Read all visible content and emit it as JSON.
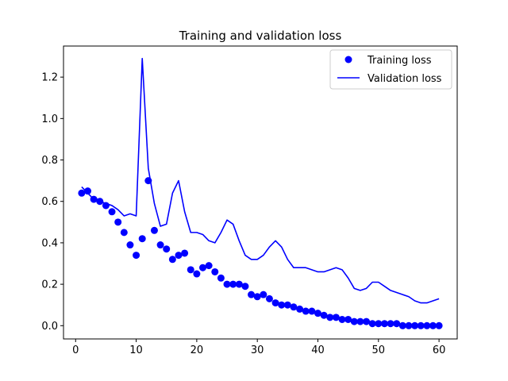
{
  "chart_data": {
    "type": "line",
    "title": "Training and validation loss",
    "xlabel": "",
    "ylabel": "",
    "xlim": [
      -2,
      63
    ],
    "ylim": [
      -0.064,
      1.35
    ],
    "xticks": [
      0,
      10,
      20,
      30,
      40,
      50,
      60
    ],
    "yticks": [
      0.0,
      0.2,
      0.4,
      0.6,
      0.8,
      1.0,
      1.2
    ],
    "xtick_labels": [
      "0",
      "10",
      "20",
      "30",
      "40",
      "50",
      "60"
    ],
    "ytick_labels": [
      "0.0",
      "0.2",
      "0.4",
      "0.6",
      "0.8",
      "1.0",
      "1.2"
    ],
    "grid": false,
    "legend_position": "top-right",
    "x": [
      1,
      2,
      3,
      4,
      5,
      6,
      7,
      8,
      9,
      10,
      11,
      12,
      13,
      14,
      15,
      16,
      17,
      18,
      19,
      20,
      21,
      22,
      23,
      24,
      25,
      26,
      27,
      28,
      29,
      30,
      31,
      32,
      33,
      34,
      35,
      36,
      37,
      38,
      39,
      40,
      41,
      42,
      43,
      44,
      45,
      46,
      47,
      48,
      49,
      50,
      51,
      52,
      53,
      54,
      55,
      56,
      57,
      58,
      59,
      60
    ],
    "series": [
      {
        "name": "Training loss",
        "style": "points",
        "color": "#0000ff",
        "values": [
          0.64,
          0.65,
          0.61,
          0.6,
          0.58,
          0.55,
          0.5,
          0.45,
          0.39,
          0.34,
          0.42,
          0.7,
          0.46,
          0.39,
          0.37,
          0.32,
          0.34,
          0.35,
          0.27,
          0.25,
          0.28,
          0.29,
          0.26,
          0.23,
          0.2,
          0.2,
          0.2,
          0.19,
          0.15,
          0.14,
          0.15,
          0.13,
          0.11,
          0.1,
          0.1,
          0.09,
          0.08,
          0.07,
          0.07,
          0.06,
          0.05,
          0.04,
          0.04,
          0.03,
          0.03,
          0.02,
          0.02,
          0.02,
          0.01,
          0.01,
          0.01,
          0.01,
          0.01,
          0.0,
          0.0,
          0.0,
          0.0,
          0.0,
          0.0,
          0.0
        ]
      },
      {
        "name": "Validation loss",
        "style": "line",
        "color": "#0000ff",
        "values": [
          0.67,
          0.64,
          0.61,
          0.6,
          0.59,
          0.58,
          0.56,
          0.53,
          0.54,
          0.53,
          1.29,
          0.76,
          0.59,
          0.48,
          0.49,
          0.64,
          0.7,
          0.55,
          0.45,
          0.45,
          0.44,
          0.41,
          0.4,
          0.45,
          0.51,
          0.49,
          0.41,
          0.34,
          0.32,
          0.32,
          0.34,
          0.38,
          0.41,
          0.38,
          0.32,
          0.28,
          0.28,
          0.28,
          0.27,
          0.26,
          0.26,
          0.27,
          0.28,
          0.27,
          0.23,
          0.18,
          0.17,
          0.18,
          0.21,
          0.21,
          0.19,
          0.17,
          0.16,
          0.15,
          0.14,
          0.12,
          0.11,
          0.11,
          0.12,
          0.13
        ]
      }
    ]
  }
}
